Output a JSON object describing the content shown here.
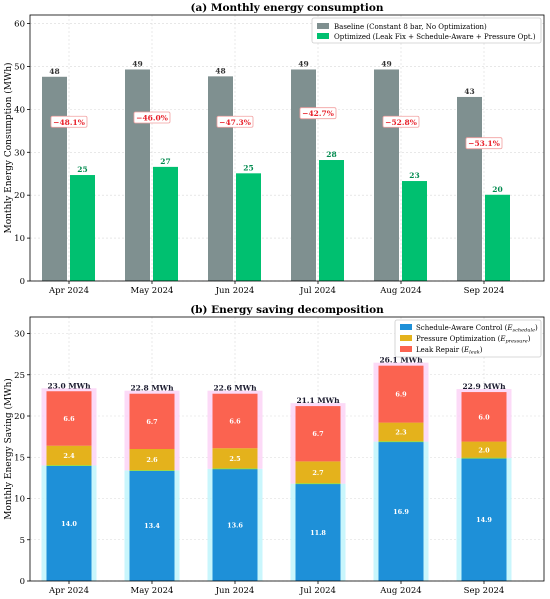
{
  "chart_data": [
    {
      "type": "bar",
      "title": "(a) Monthly energy consumption",
      "ylabel": "Monthly Energy Consumption (MWh)",
      "xlabel": "",
      "ylim": [
        0,
        62
      ],
      "yticks": [
        0,
        10,
        20,
        30,
        40,
        50,
        60
      ],
      "grid": true,
      "legend_position": "top-right",
      "categories": [
        "Apr 2024",
        "May 2024",
        "Jun 2024",
        "Jul 2024",
        "Aug 2024",
        "Sep 2024"
      ],
      "series": [
        {
          "name": "Baseline (Constant 8 bar, No Optimization)",
          "color": "#7f9090",
          "values": [
            47.6,
            49.3,
            47.7,
            49.3,
            49.3,
            42.9
          ],
          "labels": [
            "48",
            "49",
            "48",
            "49",
            "49",
            "43"
          ]
        },
        {
          "name": "Optimized (Leak Fix + Schedule-Aware + Pressure Opt.)",
          "color": "#00c070",
          "values": [
            24.7,
            26.6,
            25.1,
            28.2,
            23.3,
            20.1
          ],
          "labels": [
            "25",
            "27",
            "25",
            "28",
            "23",
            "20"
          ]
        }
      ],
      "annotations": {
        "reductions": [
          "−48.1%",
          "−46.0%",
          "−47.3%",
          "−42.7%",
          "−52.8%",
          "−53.1%"
        ],
        "reduction_y": [
          37,
          38,
          37,
          39,
          37,
          32
        ]
      }
    },
    {
      "type": "bar",
      "stacked": true,
      "title": "(b) Energy saving decomposition",
      "ylabel": "Monthly Energy Saving (MWh)",
      "xlabel": "",
      "ylim": [
        0,
        32
      ],
      "yticks": [
        0,
        5,
        10,
        15,
        20,
        25,
        30
      ],
      "grid": true,
      "legend_position": "top-right",
      "categories": [
        "Apr 2024",
        "May 2024",
        "Jun 2024",
        "Jul 2024",
        "Aug 2024",
        "Sep 2024"
      ],
      "series": [
        {
          "name": "Schedule-Aware Control",
          "legend_main": "Schedule-Aware Control (",
          "legend_sym": "E",
          "legend_sub": "schedule",
          "color": "#1e90d8",
          "values": [
            14.0,
            13.4,
            13.6,
            11.8,
            16.9,
            14.9
          ],
          "labels": [
            "14.0",
            "13.4",
            "13.6",
            "11.8",
            "16.9",
            "14.9"
          ]
        },
        {
          "name": "Pressure Optimization",
          "legend_main": "Pressure Optimization (",
          "legend_sym": "E",
          "legend_sub": "pressure",
          "color": "#e4b21c",
          "values": [
            2.4,
            2.6,
            2.5,
            2.7,
            2.3,
            2.0
          ],
          "labels": [
            "2.4",
            "2.6",
            "2.5",
            "2.7",
            "2.3",
            "2.0"
          ]
        },
        {
          "name": "Leak Repair",
          "legend_main": "Leak Repair (",
          "legend_sym": "E",
          "legend_sub": "leak",
          "color": "#fb6350",
          "values": [
            6.6,
            6.7,
            6.6,
            6.7,
            6.9,
            6.0
          ],
          "labels": [
            "6.6",
            "6.7",
            "6.6",
            "6.7",
            "6.9",
            "6.0"
          ]
        }
      ],
      "totals": [
        "23.0 MWh",
        "22.8 MWh",
        "22.6 MWh",
        "21.1 MWh",
        "26.1 MWh",
        "22.9 MWh"
      ]
    }
  ]
}
